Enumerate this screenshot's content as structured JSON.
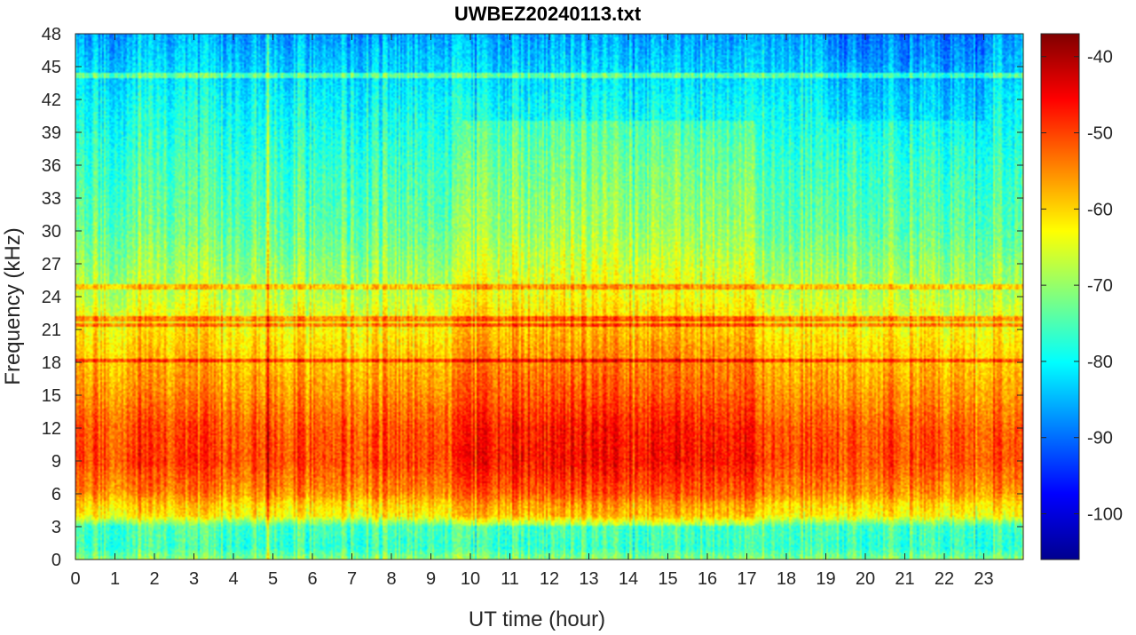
{
  "chart_data": {
    "type": "heatmap",
    "title": "UWBEZ20240113.txt",
    "xlabel": "UT time (hour)",
    "ylabel": "Frequency (kHz)",
    "xlim": [
      0,
      24
    ],
    "ylim": [
      0,
      48
    ],
    "x_ticks": [
      "0",
      "1",
      "2",
      "3",
      "4",
      "5",
      "6",
      "7",
      "8",
      "9",
      "10",
      "11",
      "12",
      "13",
      "14",
      "15",
      "16",
      "17",
      "18",
      "19",
      "20",
      "21",
      "22",
      "23"
    ],
    "y_ticks": [
      "0",
      "3",
      "6",
      "9",
      "12",
      "15",
      "18",
      "21",
      "24",
      "27",
      "30",
      "33",
      "36",
      "39",
      "42",
      "45",
      "48"
    ],
    "colorbar": {
      "colormap": "jet",
      "range": [
        -106,
        -37
      ],
      "ticks": [
        "-100",
        "-90",
        "-80",
        "-70",
        "-60",
        "-50",
        "-40"
      ]
    },
    "approx_intensity_profile": {
      "frequency_kHz": [
        0,
        1,
        3,
        4,
        5,
        6,
        9,
        12,
        15,
        18,
        21,
        24,
        27,
        30,
        36,
        42,
        48
      ],
      "level_dB": [
        -70,
        -76,
        -75,
        -62,
        -60,
        -55,
        -50,
        -51,
        -55,
        -58,
        -62,
        -67,
        -70,
        -73,
        -76,
        -80,
        -86
      ]
    },
    "narrowband_lines_kHz": [
      18.2,
      21.4,
      22.0,
      24.9,
      44.2
    ],
    "bright_time_interval_hours": [
      9.8,
      17.2
    ]
  }
}
